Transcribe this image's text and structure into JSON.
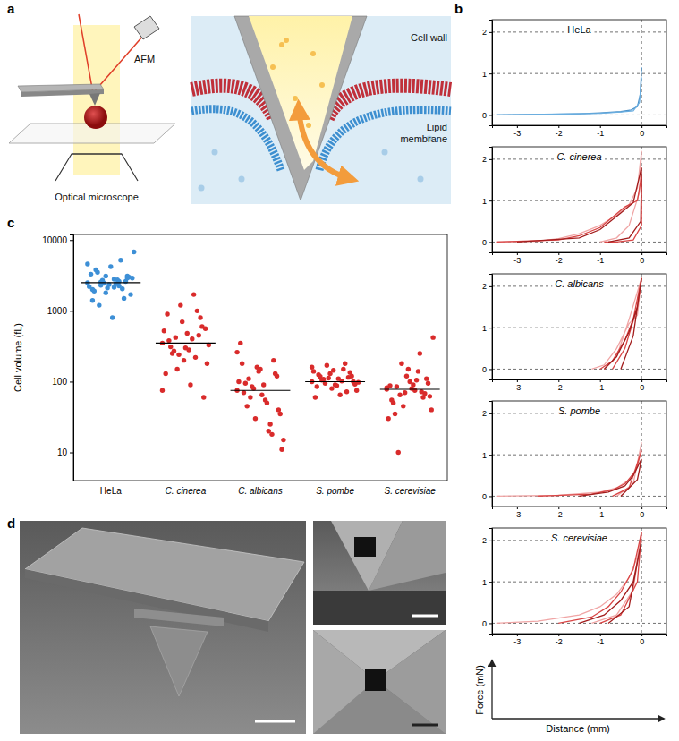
{
  "panel_labels": [
    "a",
    "b",
    "c",
    "d"
  ],
  "illustration": {
    "afm": "AFM",
    "microscope": "Optical microscope",
    "cell_wall": "Cell wall",
    "membrane": "Lipid membrane"
  },
  "force_axes": {
    "xlabel": "Distance (mm)",
    "ylabel": "Force (mN)"
  },
  "chart_data": [
    {
      "type": "line",
      "title": "HeLa",
      "xlim": [
        -3.6,
        0.6
      ],
      "ylim": [
        -0.25,
        2.3
      ],
      "xticks": [
        -3,
        -2,
        -1,
        0
      ],
      "yticks": [
        0,
        1,
        2
      ],
      "grid": true,
      "series": [
        {
          "color": "#4a90c8",
          "x": [
            -3.5,
            -2.5,
            -1.5,
            -1.0,
            -0.5,
            -0.25,
            -0.1,
            -0.03,
            0
          ],
          "values": [
            0,
            0.01,
            0.03,
            0.05,
            0.08,
            0.12,
            0.2,
            0.5,
            1.15
          ]
        },
        {
          "color": "#6aaee0",
          "x": [
            -3.5,
            -2.0,
            -1.0,
            -0.5,
            -0.2,
            -0.05,
            0
          ],
          "values": [
            0,
            0.02,
            0.04,
            0.07,
            0.1,
            0.3,
            0.9
          ]
        }
      ]
    },
    {
      "type": "line",
      "title": "C. cinerea",
      "xlim": [
        -3.6,
        0.6
      ],
      "ylim": [
        -0.25,
        2.3
      ],
      "xticks": [
        -3,
        -2,
        -1,
        0
      ],
      "yticks": [
        0,
        1,
        2
      ],
      "grid": true,
      "series": [
        {
          "color": "#f0a5a5",
          "x": [
            -3.5,
            -2.5,
            -2,
            -1.5,
            -1,
            -0.6,
            -0.3,
            -0.1,
            0,
            -0.05,
            -0.3,
            -0.6,
            -1
          ],
          "values": [
            0,
            0.02,
            0.08,
            0.2,
            0.4,
            0.65,
            0.9,
            1.3,
            2.2,
            1.2,
            0.4,
            0.1,
            0
          ]
        },
        {
          "color": "#d94545",
          "x": [
            -3.5,
            -2,
            -1.5,
            -1,
            -0.7,
            -0.4,
            -0.1,
            0,
            0,
            -0.2,
            -0.6,
            -0.9
          ],
          "values": [
            0,
            0.05,
            0.15,
            0.35,
            0.6,
            0.85,
            1.0,
            1.6,
            0.4,
            0.05,
            0,
            0
          ]
        },
        {
          "color": "#a31d1d",
          "x": [
            -3.0,
            -1.5,
            -1,
            -0.5,
            -0.2,
            0,
            -0.02,
            -0.3,
            -0.8
          ],
          "values": [
            0,
            0.1,
            0.3,
            0.7,
            0.95,
            1.8,
            0.5,
            0.1,
            0
          ]
        }
      ]
    },
    {
      "type": "line",
      "title": "C. albicans",
      "xlim": [
        -3.6,
        0.6
      ],
      "ylim": [
        -0.25,
        2.3
      ],
      "xticks": [
        -3,
        -2,
        -1,
        0
      ],
      "yticks": [
        0,
        1,
        2
      ],
      "grid": true,
      "series": [
        {
          "color": "#f0a5a5",
          "x": [
            -1.2,
            -0.9,
            -0.6,
            -0.3,
            -0.1,
            0,
            -0.3,
            -0.6,
            -0.9
          ],
          "values": [
            0,
            0.1,
            0.5,
            1.1,
            1.3,
            2.2,
            1.2,
            0.3,
            0
          ]
        },
        {
          "color": "#d94545",
          "x": [
            -1.0,
            -0.7,
            -0.4,
            -0.2,
            0,
            -0.1,
            -0.4,
            -0.7
          ],
          "values": [
            0,
            0.2,
            0.7,
            1.2,
            2.2,
            1.5,
            0.5,
            0
          ]
        },
        {
          "color": "#a31d1d",
          "x": [
            -0.9,
            -0.6,
            -0.3,
            -0.1,
            0,
            -0.2,
            -0.5
          ],
          "values": [
            0,
            0.3,
            0.9,
            1.5,
            2.2,
            0.8,
            0
          ]
        }
      ]
    },
    {
      "type": "line",
      "title": "S. pombe",
      "xlim": [
        -3.6,
        0.6
      ],
      "ylim": [
        -0.25,
        2.3
      ],
      "xticks": [
        -3,
        -2,
        -1,
        0
      ],
      "yticks": [
        0,
        1,
        2
      ],
      "grid": true,
      "series": [
        {
          "color": "#f0a5a5",
          "x": [
            -3.5,
            -2,
            -1,
            -0.6,
            -0.3,
            -0.1,
            0,
            -0.2,
            -0.6
          ],
          "values": [
            0,
            0.02,
            0.1,
            0.2,
            0.4,
            0.7,
            1.3,
            0.3,
            0
          ]
        },
        {
          "color": "#d94545",
          "x": [
            -2.5,
            -1.2,
            -0.7,
            -0.4,
            -0.15,
            0,
            -0.3,
            -0.7
          ],
          "values": [
            0,
            0.05,
            0.15,
            0.3,
            0.6,
            1.1,
            0.2,
            0
          ]
        },
        {
          "color": "#a31d1d",
          "x": [
            -1.5,
            -0.8,
            -0.4,
            -0.2,
            0,
            -0.1,
            -0.5
          ],
          "values": [
            0,
            0.1,
            0.25,
            0.5,
            0.9,
            0.4,
            0
          ]
        }
      ]
    },
    {
      "type": "line",
      "title": "S. cerevisiae",
      "xlim": [
        -3.6,
        0.6
      ],
      "ylim": [
        -0.25,
        2.3
      ],
      "xticks": [
        -3,
        -2,
        -1,
        0
      ],
      "yticks": [
        0,
        1,
        2
      ],
      "grid": true,
      "series": [
        {
          "color": "#f0a5a5",
          "x": [
            -3.5,
            -2.5,
            -1.5,
            -1,
            -0.6,
            -0.3,
            -0.1,
            0,
            -0.2,
            -0.6,
            -1.2
          ],
          "values": [
            0,
            0.05,
            0.2,
            0.4,
            0.7,
            1.1,
            1.6,
            2.2,
            0.8,
            0.2,
            0
          ]
        },
        {
          "color": "#d94545",
          "x": [
            -2,
            -1.2,
            -0.8,
            -0.5,
            -0.2,
            0,
            -0.1,
            -0.5,
            -1
          ],
          "values": [
            0,
            0.15,
            0.4,
            0.75,
            1.3,
            2.2,
            1.0,
            0.2,
            0
          ]
        },
        {
          "color": "#a31d1d",
          "x": [
            -1.5,
            -0.9,
            -0.5,
            -0.2,
            0,
            -0.3,
            -0.8
          ],
          "values": [
            0,
            0.2,
            0.55,
            1.0,
            2.0,
            0.4,
            0
          ]
        }
      ]
    },
    {
      "type": "scatter",
      "ylabel": "Cell volume (fL)",
      "log": "y",
      "ylim": [
        4,
        12000
      ],
      "yticks": [
        10,
        100,
        1000,
        10000
      ],
      "categories": [
        "HeLa",
        "C. cinerea",
        "C. albicans",
        "S. pombe",
        "S. cerevisiae"
      ],
      "colors": [
        "#3d8fd6",
        "#d92b2b",
        "#d92b2b",
        "#d92b2b",
        "#d92b2b"
      ],
      "values": [
        [
          2500,
          2300,
          2800,
          3100,
          2000,
          1800,
          2600,
          2900,
          3500,
          4200,
          1500,
          2200,
          2700,
          2400,
          3000,
          1900,
          2100,
          5200,
          6800,
          1200,
          800,
          2600,
          3300,
          2450,
          2750,
          1700,
          3800,
          2350,
          2050,
          4600,
          2550,
          2150,
          2900,
          1400,
          3100,
          2250
        ],
        [
          350,
          420,
          280,
          600,
          900,
          1200,
          1700,
          180,
          250,
          300,
          450,
          520,
          150,
          90,
          60,
          380,
          700,
          220,
          330,
          270,
          480,
          800,
          130,
          240,
          400,
          560,
          310,
          200,
          1000,
          75
        ],
        [
          75,
          60,
          90,
          120,
          180,
          30,
          20,
          11,
          45,
          150,
          200,
          100,
          85,
          55,
          40,
          70,
          160,
          25,
          15,
          110,
          65,
          130,
          350,
          80,
          50,
          35,
          95,
          140,
          18,
          260
        ],
        [
          100,
          95,
          110,
          120,
          85,
          130,
          150,
          75,
          105,
          90,
          115,
          140,
          170,
          65,
          100,
          125,
          80,
          180,
          98,
          108,
          88,
          135,
          60,
          112,
          102,
          92,
          118,
          145,
          72,
          160
        ],
        [
          78,
          65,
          90,
          110,
          55,
          70,
          140,
          40,
          85,
          100,
          60,
          30,
          180,
          75,
          95,
          50,
          120,
          250,
          420,
          10,
          80,
          68,
          88,
          45,
          105,
          62,
          35,
          150,
          72,
          82
        ]
      ],
      "means": [
        2500,
        350,
        75,
        100,
        78
      ]
    }
  ]
}
